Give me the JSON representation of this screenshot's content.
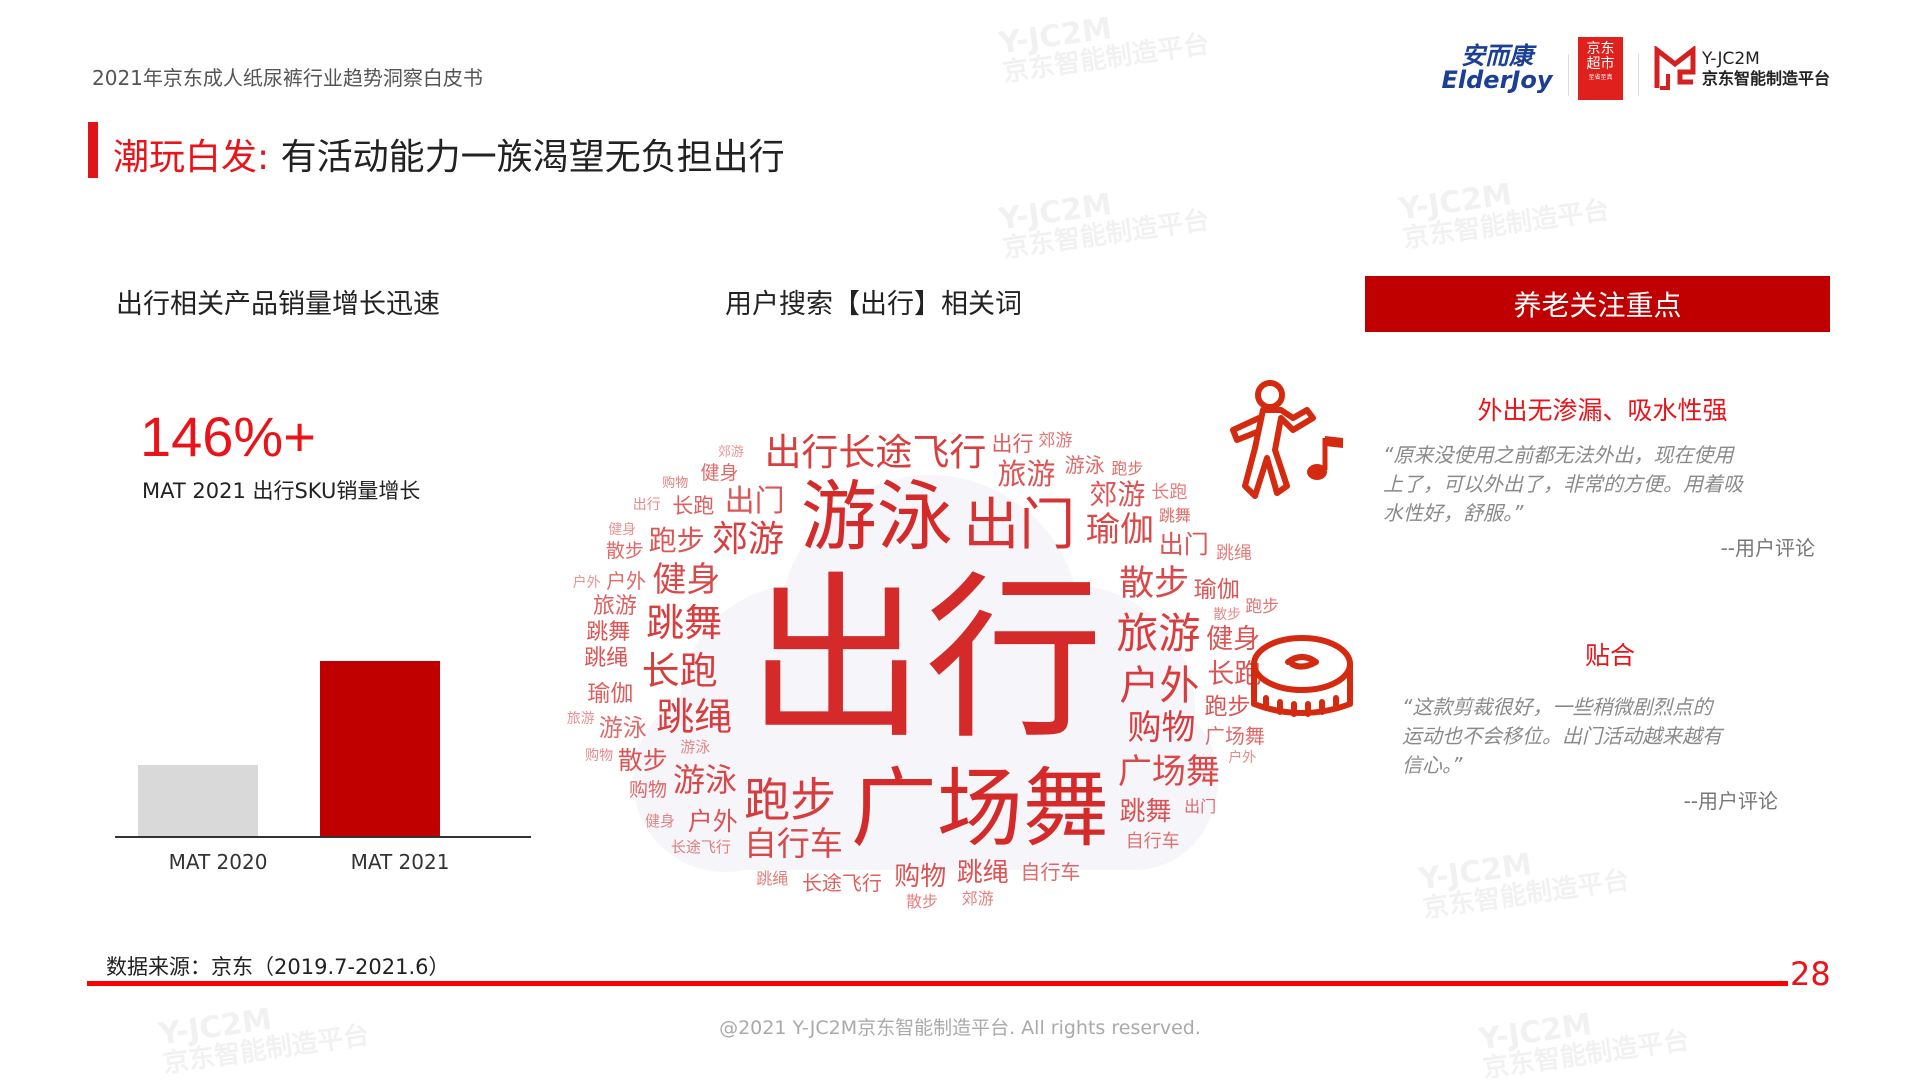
{
  "watermark": {
    "line1": "Y-JC2M",
    "line2": "京东智能制造平台"
  },
  "header": {
    "doc_title": "2021年京东成人纸尿裤行业趋势洞察白皮书",
    "logos": {
      "elderjoy_cn": "安而康",
      "elderjoy_en": "ElderJoy",
      "jd_market_line1": "京东",
      "jd_market_line2": "超市",
      "jd_market_line3": "至省至真",
      "yjc2m_line1": "Y-JC2M",
      "yjc2m_line2": "京东智能制造平台"
    }
  },
  "title": {
    "highlight": "潮玩白发:",
    "rest": " 有活动能力一族渴望无负担出行"
  },
  "left": {
    "heading": "出行相关产品销量增长迅速",
    "stat": "146%+",
    "stat_caption": "MAT 2021 出行SKU销量增长"
  },
  "chart_data": {
    "type": "bar",
    "categories": [
      "MAT 2020",
      "MAT 2021"
    ],
    "values": [
      100,
      246
    ],
    "colors": [
      "#d9d9d9",
      "#c00000"
    ],
    "xlabel": "",
    "ylabel": "",
    "ylim": [
      0,
      260
    ],
    "grid": false
  },
  "middle": {
    "heading": "用户搜索【出行】相关词",
    "words": [
      "出行",
      "游泳",
      "广场舞",
      "跳绳",
      "出门",
      "旅游",
      "跑步",
      "长跑",
      "跳舞",
      "户外",
      "郊游",
      "购物",
      "自行车",
      "健身",
      "散步",
      "出门",
      "瑜伽",
      "健身",
      "出门",
      "游泳",
      "跑步",
      "出行长途飞行",
      "广场舞",
      "跳绳",
      "旅游",
      "跳舞",
      "郊游",
      "户外",
      "跳绳",
      "瑜伽",
      "跑步",
      "散步",
      "跳舞",
      "瑜伽",
      "长途飞行",
      "广场舞",
      "购物",
      "长跑",
      "出行",
      "户外",
      "游泳",
      "长跑",
      "旅游",
      "购物",
      "跳舞",
      "跑步",
      "出门",
      "购物",
      "散步",
      "郊游",
      "跑步",
      "健身",
      "自行车",
      "长途飞行",
      "游泳",
      "郊游",
      "散步",
      "户外",
      "游泳",
      "长跑",
      "健身",
      "购物",
      "散步",
      "跳绳",
      "旅游",
      "户外",
      "健身",
      "郊游",
      "自行车",
      "跳绳",
      "出行"
    ],
    "accent": "#d42a2a"
  },
  "right": {
    "box_label": "养老关注重点",
    "items": [
      {
        "icon": "dancing-person-icon",
        "heading": "外出无渗漏、吸水性强",
        "quote": [
          "“原来没使用之前都无法外出，现在使用",
          "上了，可以外出了，非常的方便。用着吸",
          "水性好，舒服。”"
        ],
        "cite": "--用户评论"
      },
      {
        "icon": "tape-measure-icon",
        "heading": "贴合",
        "quote": [
          "“这款剪裁很好，一些稍微剧烈点的",
          "运动也不会移位。出门活动越来越有",
          "信心。”"
        ],
        "cite": "--用户评论"
      }
    ]
  },
  "footer": {
    "source": "数据来源：京东（2019.7-2021.6）",
    "page": "28",
    "copyright": "@2021 Y-JC2M京东智能制造平台. All rights reserved."
  }
}
